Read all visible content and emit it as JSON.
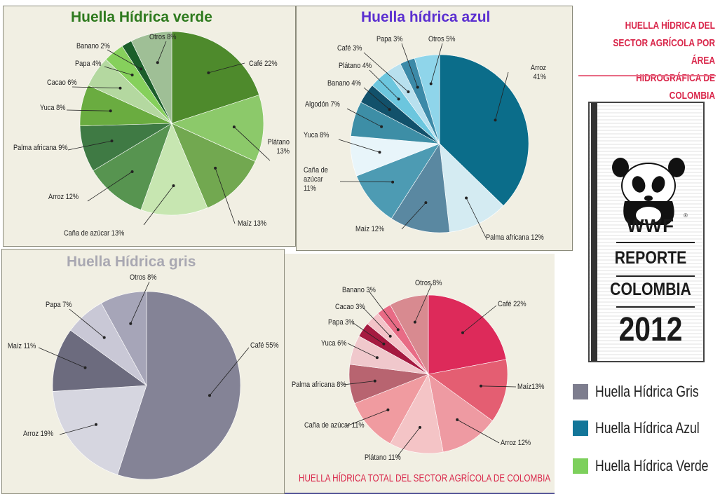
{
  "chart_data": [
    {
      "type": "pie",
      "title": "Huella Hídrica verde",
      "slices": [
        {
          "label": "Café 22%",
          "value": 22,
          "color": "#4e8a2c"
        },
        {
          "label": "Plátano 13%",
          "value": 13,
          "color": "#8cc96a"
        },
        {
          "label": "Maíz 13%",
          "value": 13,
          "color": "#72a850"
        },
        {
          "label": "Caña de azúcar 13%",
          "value": 13,
          "color": "#c7e6b1"
        },
        {
          "label": "Arroz 12%",
          "value": 12,
          "color": "#579450"
        },
        {
          "label": "Palma africana 9%",
          "value": 9,
          "color": "#3f7a44"
        },
        {
          "label": "Yuca 8%",
          "value": 8,
          "color": "#6aac40"
        },
        {
          "label": "Cacao 6%",
          "value": 6,
          "color": "#b4d8a0"
        },
        {
          "label": "Papa 4%",
          "value": 4,
          "color": "#86d05c"
        },
        {
          "label": "Banano 2%",
          "value": 2,
          "color": "#1b5e2a"
        },
        {
          "label": "Otros 8%",
          "value": 8,
          "color": "#9fbf96"
        }
      ]
    },
    {
      "type": "pie",
      "title": "Huella hídrica azul",
      "slices": [
        {
          "label": "Arroz 41%",
          "value": 41,
          "color": "#0b6d8a"
        },
        {
          "label": "Palma africana 12%",
          "value": 12,
          "color": "#d4ebf2"
        },
        {
          "label": "Maíz 12%",
          "value": 12,
          "color": "#5a88a1"
        },
        {
          "label": "Caña de azúcar 11%",
          "value": 11,
          "color": "#4d9bb3"
        },
        {
          "label": "Yuca 8%",
          "value": 8,
          "color": "#e8f5fa"
        },
        {
          "label": "Algodón 7%",
          "value": 7,
          "color": "#3d8ea6"
        },
        {
          "label": "Banano 4%",
          "value": 4,
          "color": "#12516b"
        },
        {
          "label": "Plátano 4%",
          "value": 4,
          "color": "#6cc6de"
        },
        {
          "label": "Café 3%",
          "value": 3,
          "color": "#b8e0ee"
        },
        {
          "label": "Papa 3%",
          "value": 3,
          "color": "#3c8aa8"
        },
        {
          "label": "Otros 5%",
          "value": 5,
          "color": "#8fd5ea"
        }
      ]
    },
    {
      "type": "pie",
      "title": "Huella Hídrica gris",
      "slices": [
        {
          "label": "Café 55%",
          "value": 55,
          "color": "#848396"
        },
        {
          "label": "Arroz 19%",
          "value": 19,
          "color": "#d6d6e0"
        },
        {
          "label": "Maíz 11%",
          "value": 11,
          "color": "#6c6b7e"
        },
        {
          "label": "Papa 7%",
          "value": 7,
          "color": "#c9c8d6"
        },
        {
          "label": "Otros 8%",
          "value": 8,
          "color": "#a6a5b8"
        }
      ]
    },
    {
      "type": "pie",
      "title": "HUELLA HÍDRICA TOTAL  DEL SECTOR AGRÍCOLA DE COLOMBIA",
      "slices": [
        {
          "label": "Café 22%",
          "value": 22,
          "color": "#dd2a5a"
        },
        {
          "label": "Maíz13%",
          "value": 13,
          "color": "#e45e72"
        },
        {
          "label": "Arroz 12%",
          "value": 12,
          "color": "#ee9aa2"
        },
        {
          "label": "Plátano 11%",
          "value": 11,
          "color": "#f4c4c6"
        },
        {
          "label": "Caña de azúcar 11%",
          "value": 11,
          "color": "#f09ba0"
        },
        {
          "label": "Palma africana 8%",
          "value": 8,
          "color": "#b86470"
        },
        {
          "label": "Yuca 6%",
          "value": 6,
          "color": "#f0c8cc"
        },
        {
          "label": "Papa 3%",
          "value": 3,
          "color": "#a51a40"
        },
        {
          "label": "Cacao 3%",
          "value": 3,
          "color": "#f3c3c8"
        },
        {
          "label": "Banano 3%",
          "value": 3,
          "color": "#e86b85"
        },
        {
          "label": "Otros 8%",
          "value": 8,
          "color": "#d88a90"
        }
      ]
    }
  ],
  "titles": {
    "verde": "Huella Hídrica verde",
    "azul": "Huella hídrica azul",
    "gris": "Huella Hídrica gris",
    "total": "HUELLA HÍDRICA TOTAL  DEL SECTOR AGRÍCOLA DE COLOMBIA"
  },
  "title_colors": {
    "verde": "#2e7a1e",
    "azul": "#5b2fd0",
    "gris": "#a9a8b2",
    "total": "#d9264a"
  },
  "brand": {
    "title_lines": [
      "HUELLA HÍDRICA DEL",
      "SECTOR AGRÍCOLA POR ÁREA",
      "HIDROGRÁFICA DE COLOMBIA"
    ],
    "title_color": "#d9264a",
    "logo_text": "WWF",
    "registered": "®",
    "report_line1": "REPORTE",
    "report_line2": "COLOMBIA",
    "report_year": "2012",
    "logo_icon": "panda-icon"
  },
  "legend": [
    {
      "label": "Huella Hídrica Gris",
      "color": "#7d7d8e"
    },
    {
      "label": "Huella Hídrica Azul",
      "color": "#137699"
    },
    {
      "label": "Huella Hídrica Verde",
      "color": "#7dd05c"
    }
  ]
}
